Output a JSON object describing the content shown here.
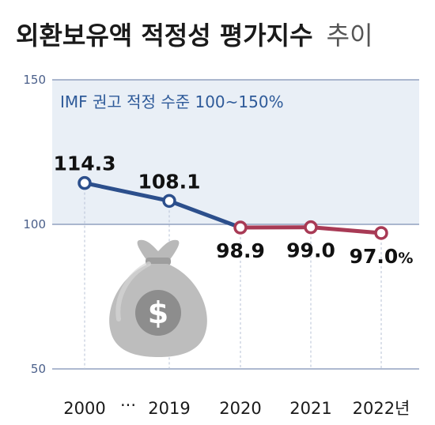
{
  "title": {
    "main": "외환보유액 적정성 평가지수",
    "suffix": "추이"
  },
  "chart_data": {
    "type": "line",
    "title": "외환보유액 적정성 평가지수 추이",
    "categories": [
      "2000",
      "2019",
      "2020",
      "2021",
      "2022년"
    ],
    "x_gap_marker": "···",
    "series": [
      {
        "values": [
          114.3,
          108.1,
          98.9,
          99.0,
          97.0
        ]
      }
    ],
    "data_labels": [
      "114.3",
      "108.1",
      "98.9",
      "99.0",
      "97.0"
    ],
    "last_label_unit": "%",
    "segment_colors": {
      "above_100": "#2c4f8c",
      "below_100": "#a83a55"
    },
    "y_ticks": [
      "150",
      "100",
      "50"
    ],
    "ylim": [
      50,
      150
    ],
    "annotation": "IMF 권고 적정 수준 100~150%",
    "annotation_range": [
      100,
      150
    ],
    "band_color": "#e9eff6",
    "grid": "vertical dashed"
  },
  "icons": {
    "money_bag": "money-bag-icon"
  }
}
